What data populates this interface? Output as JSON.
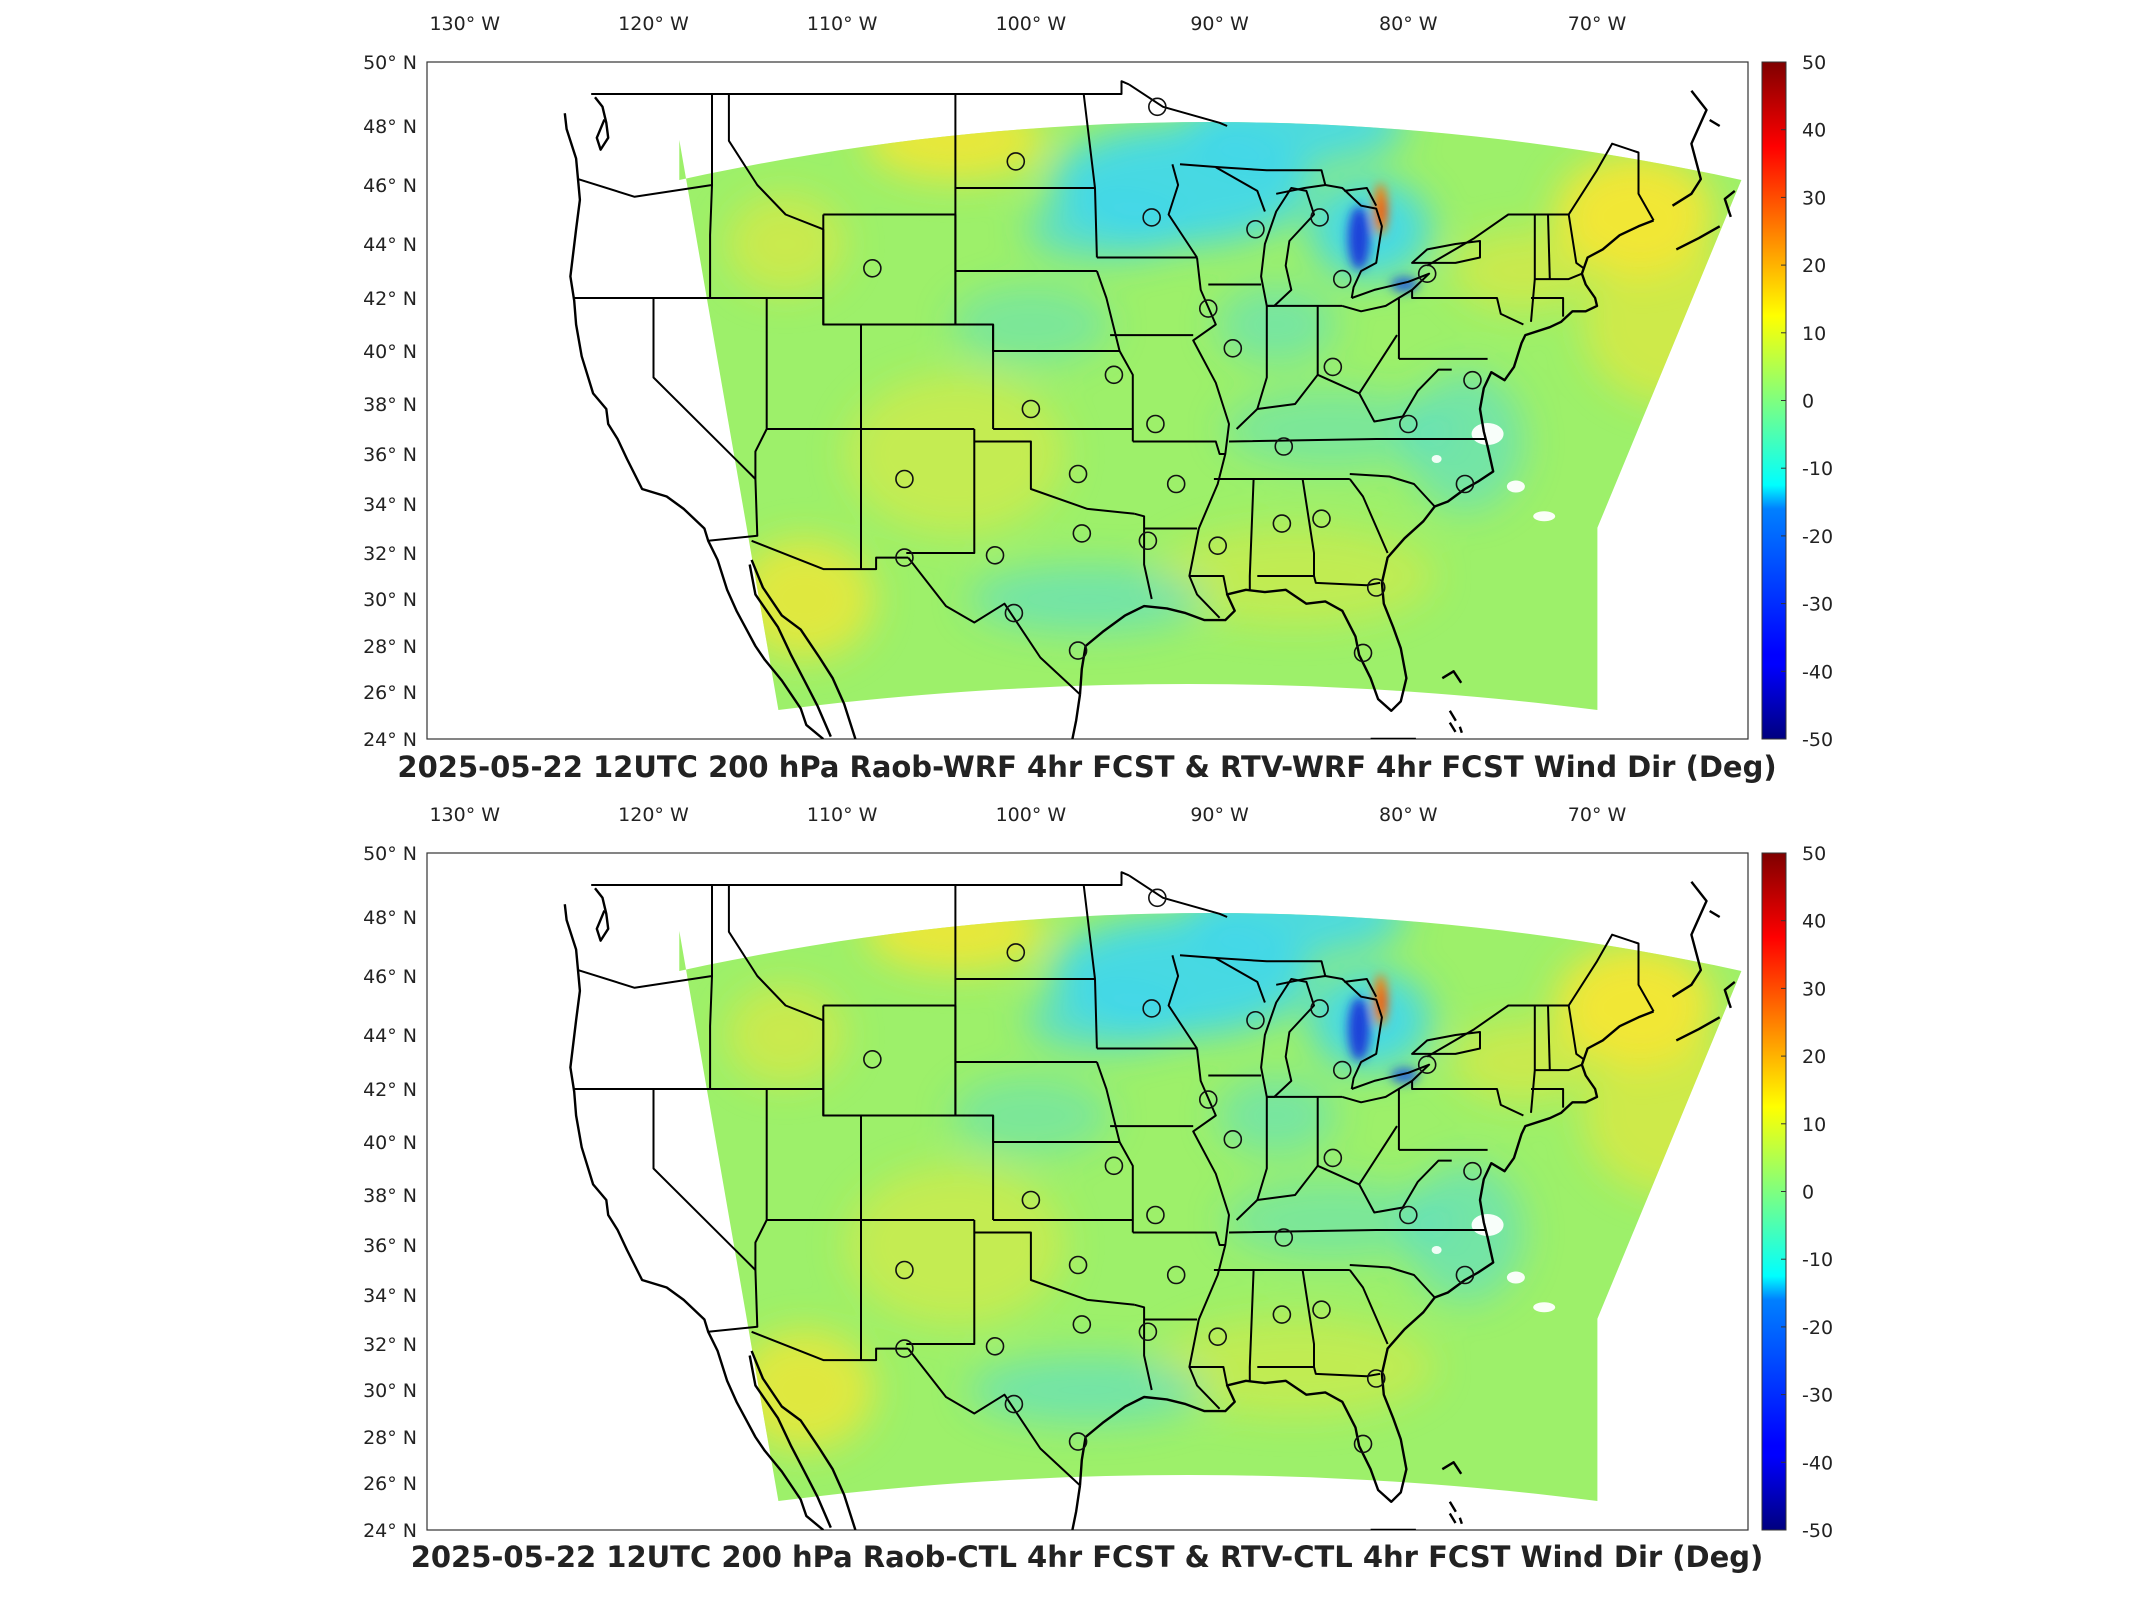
{
  "figure": {
    "panels": [
      {
        "id": "wrf",
        "title": "2025-05-22 12UTC 200 hPa Raob-WRF 4hr FCST & RTV-WRF 4hr FCST Wind Dir (Deg)"
      },
      {
        "id": "ctl",
        "title": "2025-05-22 12UTC 200 hPa Raob-CTL 4hr FCST & RTV-CTL 4hr FCST Wind Dir (Deg)"
      }
    ],
    "lon_ticks": [
      {
        "lon": -130,
        "label": "130° W"
      },
      {
        "lon": -120,
        "label": "120° W"
      },
      {
        "lon": -110,
        "label": "110° W"
      },
      {
        "lon": -100,
        "label": "100° W"
      },
      {
        "lon": -90,
        "label": "90° W"
      },
      {
        "lon": -80,
        "label": "80° W"
      },
      {
        "lon": -70,
        "label": "70° W"
      }
    ],
    "lat_ticks": [
      {
        "lat": 50,
        "label": "50° N"
      },
      {
        "lat": 48,
        "label": "48° N"
      },
      {
        "lat": 46,
        "label": "46° N"
      },
      {
        "lat": 44,
        "label": "44° N"
      },
      {
        "lat": 42,
        "label": "42° N"
      },
      {
        "lat": 40,
        "label": "40° N"
      },
      {
        "lat": 38,
        "label": "38° N"
      },
      {
        "lat": 36,
        "label": "36° N"
      },
      {
        "lat": 34,
        "label": "34° N"
      },
      {
        "lat": 32,
        "label": "32° N"
      },
      {
        "lat": 30,
        "label": "30° N"
      },
      {
        "lat": 28,
        "label": "28° N"
      },
      {
        "lat": 26,
        "label": "26° N"
      },
      {
        "lat": 24,
        "label": "24° N"
      }
    ],
    "colorbar": {
      "min": -50,
      "max": 50,
      "colormap": "jet",
      "ticks": [
        "50",
        "40",
        "30",
        "20",
        "10",
        "0",
        "-10",
        "-20",
        "-30",
        "-40",
        "-50"
      ]
    },
    "colors": {
      "field_base": "#9df06a",
      "positive_anomaly": "#f5e632",
      "negative_anomaly": "#3fd6f0",
      "strong_positive": "#ff7a00",
      "strong_negative": "#1530d8",
      "lines": "#000000"
    },
    "raob_stations": [
      {
        "lon": -93.3,
        "lat": 48.6
      },
      {
        "lon": -100.8,
        "lat": 46.8
      },
      {
        "lon": -93.6,
        "lat": 44.9
      },
      {
        "lon": -88.1,
        "lat": 44.5
      },
      {
        "lon": -84.7,
        "lat": 44.9
      },
      {
        "lon": -83.5,
        "lat": 42.7
      },
      {
        "lon": -79.0,
        "lat": 42.9
      },
      {
        "lon": -108.4,
        "lat": 43.1
      },
      {
        "lon": -90.6,
        "lat": 41.6
      },
      {
        "lon": -89.3,
        "lat": 40.1
      },
      {
        "lon": -84.0,
        "lat": 39.4
      },
      {
        "lon": -76.6,
        "lat": 38.9
      },
      {
        "lon": -95.6,
        "lat": 39.1
      },
      {
        "lon": -100.0,
        "lat": 37.8
      },
      {
        "lon": -93.4,
        "lat": 37.2
      },
      {
        "lon": -86.6,
        "lat": 36.3
      },
      {
        "lon": -80.0,
        "lat": 37.2
      },
      {
        "lon": -106.7,
        "lat": 35.0
      },
      {
        "lon": -97.5,
        "lat": 35.2
      },
      {
        "lon": -92.3,
        "lat": 34.8
      },
      {
        "lon": -77.0,
        "lat": 34.8
      },
      {
        "lon": -106.7,
        "lat": 31.8
      },
      {
        "lon": -101.9,
        "lat": 31.9
      },
      {
        "lon": -97.3,
        "lat": 32.8
      },
      {
        "lon": -93.8,
        "lat": 32.5
      },
      {
        "lon": -90.1,
        "lat": 32.3
      },
      {
        "lon": -86.7,
        "lat": 33.2
      },
      {
        "lon": -84.6,
        "lat": 33.4
      },
      {
        "lon": -81.7,
        "lat": 30.5
      },
      {
        "lon": -100.9,
        "lat": 29.4
      },
      {
        "lon": -97.5,
        "lat": 27.8
      },
      {
        "lon": -82.4,
        "lat": 27.7
      }
    ]
  }
}
